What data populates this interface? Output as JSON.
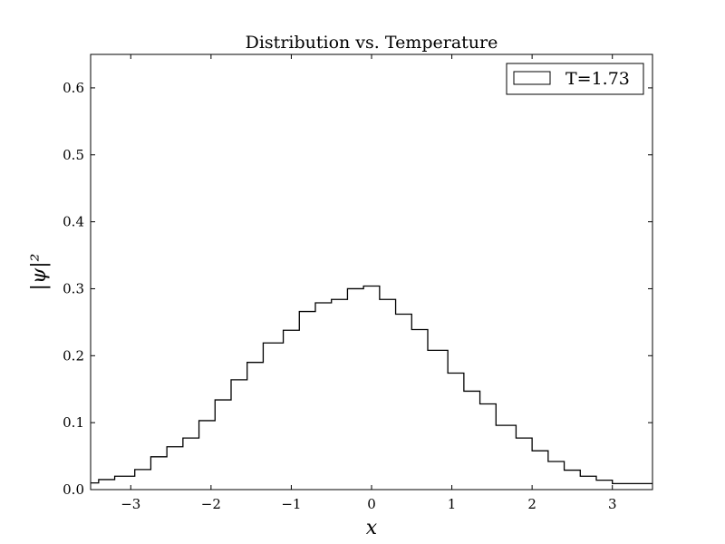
{
  "chart_data": {
    "type": "histogram-step",
    "title": "Distribution vs. Temperature",
    "xlabel": "x",
    "ylabel": "|ψ|²",
    "xlim": [
      -3.5,
      3.5
    ],
    "ylim": [
      0.0,
      0.65
    ],
    "xticks": [
      -3,
      -2,
      -1,
      0,
      1,
      2,
      3
    ],
    "xtick_labels": [
      "−3",
      "−2",
      "−1",
      "0",
      "1",
      "2",
      "3"
    ],
    "yticks": [
      0.0,
      0.1,
      0.2,
      0.3,
      0.4,
      0.5,
      0.6
    ],
    "ytick_labels": [
      "0.0",
      "0.1",
      "0.2",
      "0.3",
      "0.4",
      "0.5",
      "0.6"
    ],
    "grid": false,
    "legend_position": "top-right",
    "line_color": "#000000",
    "series": [
      {
        "name": "T=1.73",
        "bin_edges": [
          -3.5,
          -3.4,
          -3.2,
          -2.95,
          -2.75,
          -2.55,
          -2.35,
          -2.15,
          -1.95,
          -1.75,
          -1.55,
          -1.35,
          -1.1,
          -0.9,
          -0.7,
          -0.5,
          -0.3,
          -0.1,
          0.1,
          0.3,
          0.5,
          0.7,
          0.95,
          1.15,
          1.35,
          1.55,
          1.8,
          2.0,
          2.2,
          2.4,
          2.6,
          2.8,
          3.0,
          3.2,
          3.4,
          3.5
        ],
        "values": [
          0.01,
          0.015,
          0.02,
          0.03,
          0.049,
          0.064,
          0.077,
          0.103,
          0.134,
          0.164,
          0.19,
          0.219,
          0.238,
          0.266,
          0.279,
          0.284,
          0.3,
          0.304,
          0.284,
          0.262,
          0.239,
          0.208,
          0.174,
          0.147,
          0.128,
          0.096,
          0.077,
          0.058,
          0.042,
          0.029,
          0.02,
          0.014,
          0.009,
          0.009,
          0.009
        ]
      }
    ]
  }
}
